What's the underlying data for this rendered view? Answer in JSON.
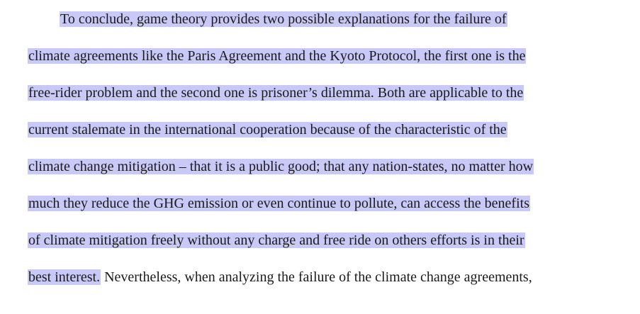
{
  "document": {
    "highlight_color": "#c9c9f7",
    "lines": [
      "To conclude, game theory provides two possible explanations for the failure of",
      "climate agreements like the Paris Agreement and the Kyoto Protocol, the first one is the",
      "free-rider problem and the second one is prisoner’s dilemma. Both are applicable to the",
      "current stalemate in the international cooperation because of the characteristic of the",
      "climate change mitigation – that it is a public good; that any nation-states, no matter how",
      "much they reduce the GHG emission or even continue to pollute, can access the benefits",
      "of climate mitigation freely without any charge and free ride on others efforts is in their"
    ],
    "last_line_highlighted": "best interest.",
    "last_line_plain": " Nevertheless, when analyzing the failure of the climate change agreements,"
  }
}
